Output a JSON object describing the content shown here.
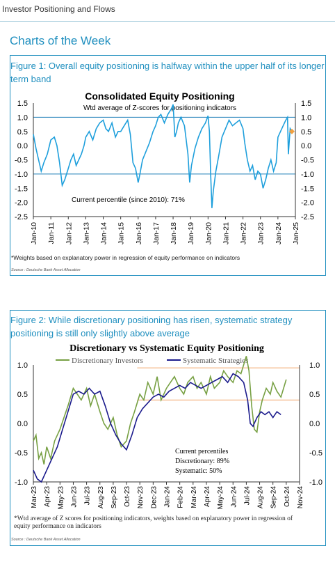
{
  "header": {
    "title": "Investor Positioning and Flows"
  },
  "section_title": "Charts of the Week",
  "figure1": {
    "caption": "Figure 1: Overall equity positioning is halfway within the upper half of its longer term band",
    "footnote": "*Weights based on explanatory power in regression of equity performance on indicators",
    "source": "Source : Deutsche Bank Asset Allocation"
  },
  "figure2": {
    "caption": "Figure 2: While discretionary positioning has risen, systematic strategy positioning is still only slightly above average",
    "footnote": "*Wtd average of Z scores for positioning indicators, weights based on explanatory power in regression of equity performance on indicators",
    "source": "Source : Deutsche Bank Asset Allocation"
  },
  "chart_data": [
    {
      "type": "line",
      "title": "Consolidated Equity Positioning",
      "subtitle": "Wtd average of Z-scores for positioning indicators",
      "annotation": "Current percentile (since 2010): 71%",
      "ylim": [
        -2.5,
        1.5
      ],
      "yticks": [
        "1.5",
        "1.0",
        "0.5",
        "0.0",
        "-0.5",
        "-1.0",
        "-1.5",
        "-2.0",
        "-2.5"
      ],
      "yticks_right": [
        "1.5",
        "1.0",
        "0.5",
        "0.0",
        "-0.5",
        "-1.0",
        "-1.5",
        "-2.0",
        "-2.5"
      ],
      "reference_lines": [
        1.0,
        -1.0
      ],
      "x_tick_labels": [
        "Jan-10",
        "Jan-11",
        "Jan-12",
        "Jan-13",
        "Jan-14",
        "Jan-15",
        "Jan-16",
        "Jan-17",
        "Jan-18",
        "Jan-19",
        "Jan-20",
        "Jan-21",
        "Jan-22",
        "Jan-23",
        "Jan-24",
        "Jan-25"
      ],
      "colors": {
        "series": "#1e9fdc",
        "current_marker": "#f0a040",
        "reference": "#1f7fb8"
      },
      "series": [
        {
          "x": [
            2010.0,
            2010.15,
            2010.3,
            2010.45,
            2010.6,
            2010.8,
            2011.0,
            2011.2,
            2011.35,
            2011.5,
            2011.65,
            2011.8,
            2012.0,
            2012.15,
            2012.3,
            2012.45,
            2012.6,
            2012.75,
            2012.9,
            2013.0,
            2013.2,
            2013.4,
            2013.6,
            2013.8,
            2014.0,
            2014.15,
            2014.3,
            2014.5,
            2014.7,
            2014.85,
            2015.0,
            2015.2,
            2015.4,
            2015.55,
            2015.7,
            2015.85,
            2016.0,
            2016.1,
            2016.25,
            2016.45,
            2016.65,
            2016.85,
            2017.0,
            2017.15,
            2017.3,
            2017.5,
            2017.7,
            2017.9,
            2018.0,
            2018.1,
            2018.2,
            2018.3,
            2018.45,
            2018.65,
            2018.85,
            2018.95,
            2019.05,
            2019.25,
            2019.45,
            2019.65,
            2019.85,
            2020.0,
            2020.08,
            2020.15,
            2020.22,
            2020.3,
            2020.45,
            2020.6,
            2020.8,
            2021.0,
            2021.2,
            2021.4,
            2021.6,
            2021.8,
            2022.0,
            2022.1,
            2022.25,
            2022.4,
            2022.55,
            2022.7,
            2022.85,
            2023.0,
            2023.15,
            2023.3,
            2023.45,
            2023.6,
            2023.75,
            2023.9,
            2024.0,
            2024.15,
            2024.3,
            2024.45,
            2024.55,
            2024.6,
            2024.7,
            2024.8
          ],
          "y": [
            0.4,
            -0.1,
            -0.5,
            -0.9,
            -0.6,
            -0.3,
            0.2,
            0.3,
            0.0,
            -0.6,
            -1.4,
            -1.2,
            -0.8,
            -0.5,
            -0.3,
            -0.7,
            -0.5,
            -0.3,
            0.0,
            0.3,
            0.5,
            0.2,
            0.6,
            0.8,
            0.9,
            0.6,
            0.5,
            0.8,
            0.3,
            0.5,
            0.5,
            0.7,
            0.9,
            0.4,
            -0.6,
            -0.8,
            -1.3,
            -1.0,
            -0.5,
            -0.2,
            0.1,
            0.5,
            0.7,
            1.0,
            1.1,
            0.8,
            1.1,
            1.3,
            1.45,
            0.3,
            0.5,
            0.8,
            1.0,
            0.7,
            -0.3,
            -1.3,
            -0.7,
            -0.1,
            0.3,
            0.6,
            0.8,
            1.05,
            0.5,
            -1.0,
            -2.2,
            -1.6,
            -0.9,
            -0.4,
            0.3,
            0.6,
            0.9,
            0.7,
            0.8,
            0.9,
            0.6,
            0.1,
            -0.5,
            -0.9,
            -0.7,
            -1.2,
            -0.9,
            -1.0,
            -1.5,
            -1.2,
            -0.8,
            -0.5,
            -0.9,
            -0.6,
            0.3,
            0.5,
            0.7,
            0.9,
            1.0,
            -0.3,
            0.6,
            0.5
          ]
        }
      ]
    },
    {
      "type": "line",
      "title": "Discretionary  vs Systematic Equity Positioning",
      "annotation": [
        "Current percentiles",
        "Discretionary: 89%",
        "Systematic: 50%"
      ],
      "ylim": [
        -1.0,
        1.0
      ],
      "yticks": [
        "1.0",
        "0.5",
        "0.0",
        "-0.5",
        "-1.0"
      ],
      "yticks_right": [
        "1.0",
        "0.5",
        "0.0",
        "-0.5",
        "-1.0"
      ],
      "reference_lines": [
        0.95,
        0.4
      ],
      "x_tick_labels": [
        "Mar-23",
        "Apr-23",
        "May-23",
        "Jun-23",
        "Jul-23",
        "Aug-23",
        "Sep-23",
        "Oct-23",
        "Nov-23",
        "Dec-23",
        "Jan-24",
        "Feb-24",
        "Mar-24",
        "Apr-24",
        "May-24",
        "Jun-24",
        "Jul-24",
        "Aug-24",
        "Sep-24",
        "Oct-24",
        "Nov-24"
      ],
      "colors": {
        "discretionary": "#77a043",
        "systematic": "#1a1a8c",
        "reference": "#f0a060"
      },
      "series": [
        {
          "name": "Discretionary Investors",
          "x": [
            0,
            0.2,
            0.4,
            0.6,
            0.8,
            1.0,
            1.3,
            1.6,
            2.0,
            2.3,
            2.6,
            3.0,
            3.3,
            3.6,
            4.0,
            4.3,
            4.6,
            5.0,
            5.3,
            5.6,
            6.0,
            6.3,
            6.6,
            7.0,
            7.3,
            7.6,
            8.0,
            8.3,
            8.6,
            9.0,
            9.3,
            9.6,
            10.0,
            10.3,
            10.6,
            11.0,
            11.3,
            11.6,
            12.0,
            12.3,
            12.6,
            13.0,
            13.3,
            13.6,
            14.0,
            14.3,
            14.6,
            15.0,
            15.3,
            15.6,
            16.0,
            16.2,
            16.4,
            16.6,
            16.8,
            17.0,
            17.2,
            17.5,
            17.8,
            18.0,
            18.3,
            18.6,
            19.0
          ],
          "y": [
            -0.3,
            -0.2,
            -0.6,
            -0.5,
            -0.7,
            -0.4,
            -0.6,
            -0.3,
            -0.1,
            0.1,
            0.3,
            0.6,
            0.5,
            0.4,
            0.6,
            0.3,
            0.5,
            0.2,
            0.0,
            -0.1,
            0.1,
            -0.2,
            -0.4,
            -0.3,
            0.0,
            0.2,
            0.5,
            0.4,
            0.7,
            0.5,
            0.8,
            0.4,
            0.6,
            0.7,
            0.8,
            0.6,
            0.5,
            0.7,
            0.8,
            0.6,
            0.7,
            0.5,
            0.8,
            0.6,
            0.7,
            0.9,
            0.8,
            0.7,
            0.9,
            0.85,
            1.15,
            0.9,
            0.3,
            -0.1,
            -0.15,
            0.2,
            0.4,
            0.6,
            0.5,
            0.7,
            0.55,
            0.45,
            0.75
          ]
        },
        {
          "name": "Systematic Strategies",
          "x": [
            0,
            0.3,
            0.6,
            1.0,
            1.4,
            1.8,
            2.2,
            2.6,
            3.0,
            3.4,
            3.8,
            4.2,
            4.6,
            5.0,
            5.4,
            5.8,
            6.2,
            6.6,
            7.0,
            7.4,
            7.8,
            8.2,
            8.6,
            9.0,
            9.4,
            9.8,
            10.2,
            10.6,
            11.0,
            11.4,
            11.8,
            12.2,
            12.6,
            13.0,
            13.4,
            13.8,
            14.2,
            14.6,
            15.0,
            15.4,
            15.8,
            16.1,
            16.3,
            16.5,
            16.8,
            17.1,
            17.4,
            17.7,
            18.0,
            18.3,
            18.6
          ],
          "y": [
            -0.8,
            -0.95,
            -1.0,
            -0.8,
            -0.6,
            -0.4,
            -0.1,
            0.2,
            0.5,
            0.55,
            0.5,
            0.6,
            0.5,
            0.55,
            0.3,
            0.0,
            -0.2,
            -0.35,
            -0.45,
            -0.2,
            0.1,
            0.25,
            0.35,
            0.45,
            0.5,
            0.45,
            0.55,
            0.6,
            0.65,
            0.6,
            0.7,
            0.65,
            0.6,
            0.65,
            0.7,
            0.75,
            0.8,
            0.7,
            0.85,
            0.8,
            0.7,
            0.4,
            0.0,
            -0.05,
            0.1,
            0.2,
            0.15,
            0.2,
            0.1,
            0.2,
            0.15
          ]
        }
      ]
    }
  ]
}
